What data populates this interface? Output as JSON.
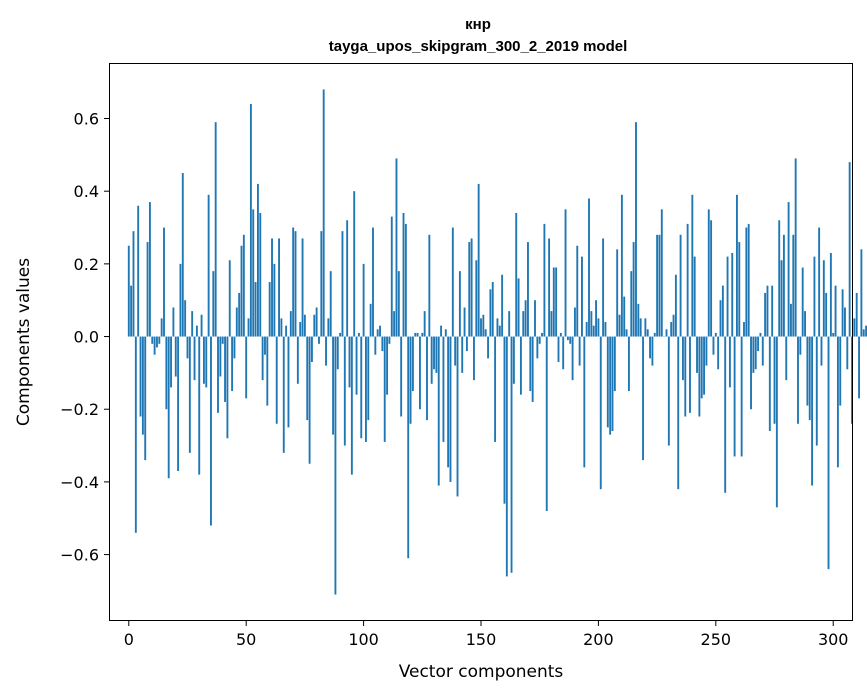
{
  "chart_data": {
    "type": "bar",
    "title": "кнр",
    "subtitle": "tayga_upos_skipgram_300_2_2019 model",
    "xlabel": "Vector components",
    "ylabel": "Components values",
    "xlim": [
      -8,
      308
    ],
    "ylim": [
      -0.78,
      0.75
    ],
    "xticks": [
      0,
      50,
      100,
      150,
      200,
      250,
      300
    ],
    "yticks": [
      -0.6,
      -0.4,
      -0.2,
      0.0,
      0.2,
      0.4,
      0.6
    ],
    "ytick_labels": [
      "−0.6",
      "−0.4",
      "−0.2",
      "0.0",
      "0.2",
      "0.4",
      "0.6"
    ],
    "xtick_labels": [
      "0",
      "50",
      "100",
      "150",
      "200",
      "250",
      "300"
    ],
    "grid": false,
    "bar_color": "#1f77b4",
    "values": [
      0.25,
      0.14,
      0.29,
      -0.54,
      0.36,
      -0.22,
      -0.27,
      -0.34,
      0.26,
      0.37,
      -0.02,
      -0.05,
      -0.03,
      -0.02,
      0.05,
      0.3,
      -0.2,
      -0.39,
      -0.14,
      0.08,
      -0.11,
      -0.37,
      0.2,
      0.45,
      0.1,
      -0.06,
      -0.32,
      0.07,
      -0.12,
      0.03,
      -0.38,
      0.06,
      -0.13,
      -0.14,
      0.39,
      -0.52,
      0.18,
      0.59,
      -0.21,
      -0.11,
      -0.02,
      -0.18,
      -0.28,
      0.21,
      -0.15,
      -0.06,
      0.08,
      0.12,
      0.25,
      0.28,
      -0.17,
      0.05,
      0.64,
      0.35,
      0.15,
      0.42,
      0.34,
      -0.12,
      -0.05,
      -0.19,
      0.15,
      0.27,
      0.2,
      -0.24,
      0.27,
      0.05,
      -0.32,
      0.03,
      -0.25,
      0.07,
      0.3,
      0.29,
      -0.13,
      0.04,
      0.27,
      0.06,
      -0.23,
      -0.35,
      -0.07,
      0.06,
      0.08,
      -0.02,
      0.29,
      0.68,
      -0.08,
      0.05,
      0.18,
      -0.27,
      -0.71,
      -0.09,
      0.01,
      0.29,
      -0.3,
      0.32,
      -0.14,
      -0.38,
      0.4,
      -0.16,
      0.01,
      -0.28,
      0.2,
      -0.29,
      -0.23,
      0.09,
      0.3,
      -0.05,
      0.02,
      0.03,
      -0.04,
      -0.29,
      -0.16,
      -0.02,
      0.33,
      0.07,
      0.49,
      0.18,
      -0.22,
      0.34,
      0.31,
      -0.61,
      -0.24,
      -0.15,
      0.01,
      0.01,
      -0.2,
      0.01,
      0.07,
      -0.23,
      0.28,
      -0.13,
      -0.09,
      -0.1,
      -0.41,
      0.03,
      -0.29,
      0.02,
      -0.36,
      -0.4,
      0.3,
      -0.08,
      -0.44,
      0.18,
      -0.1,
      0.08,
      -0.04,
      0.26,
      0.27,
      -0.12,
      0.21,
      0.42,
      0.05,
      0.06,
      0.02,
      -0.06,
      0.13,
      0.15,
      -0.29,
      0.05,
      0.03,
      0.17,
      -0.46,
      -0.66,
      0.07,
      -0.65,
      -0.13,
      0.34,
      0.16,
      -0.16,
      0.07,
      0.1,
      0.26,
      -0.15,
      -0.18,
      0.1,
      -0.06,
      -0.02,
      0.01,
      0.31,
      -0.48,
      0.27,
      0.07,
      0.19,
      0.19,
      -0.07,
      0.01,
      -0.09,
      0.35,
      -0.01,
      -0.02,
      -0.12,
      0.08,
      0.25,
      -0.08,
      0.22,
      -0.36,
      0.04,
      0.38,
      0.07,
      0.03,
      0.1,
      0.05,
      -0.42,
      0.27,
      0.04,
      -0.25,
      -0.27,
      -0.26,
      -0.15,
      0.24,
      0.06,
      0.39,
      0.11,
      0.02,
      -0.15,
      0.18,
      0.26,
      0.59,
      0.09,
      0.05,
      -0.34,
      0.05,
      0.02,
      -0.06,
      -0.08,
      0.01,
      0.28,
      0.28,
      0.35,
      0.0,
      0.02,
      -0.3,
      0.04,
      0.06,
      0.17,
      -0.42,
      0.28,
      -0.12,
      -0.22,
      0.31,
      -0.21,
      0.39,
      0.22,
      -0.1,
      -0.22,
      -0.17,
      -0.16,
      -0.08,
      0.35,
      0.32,
      -0.05,
      0.01,
      -0.09,
      0.1,
      0.14,
      -0.43,
      0.22,
      -0.14,
      0.23,
      -0.33,
      0.39,
      0.26,
      -0.33,
      0.04,
      0.3,
      0.31,
      -0.2,
      -0.1,
      -0.09,
      -0.04,
      0.01,
      -0.08,
      0.12,
      0.14,
      -0.26,
      0.14,
      -0.24,
      -0.47,
      0.32,
      0.21,
      0.28,
      -0.12,
      0.37,
      0.09,
      0.28,
      0.49,
      -0.24,
      -0.05,
      0.19,
      0.07,
      -0.19,
      -0.23,
      -0.41,
      0.22,
      -0.3,
      0.3,
      -0.08,
      0.21,
      0.12,
      -0.64,
      0.23,
      0.01,
      0.14,
      -0.36,
      -0.19,
      0.13,
      0.08,
      -0.09,
      0.48,
      -0.24,
      0.05,
      0.12,
      -0.17,
      0.24,
      0.02,
      0.03,
      -0.04
    ]
  }
}
